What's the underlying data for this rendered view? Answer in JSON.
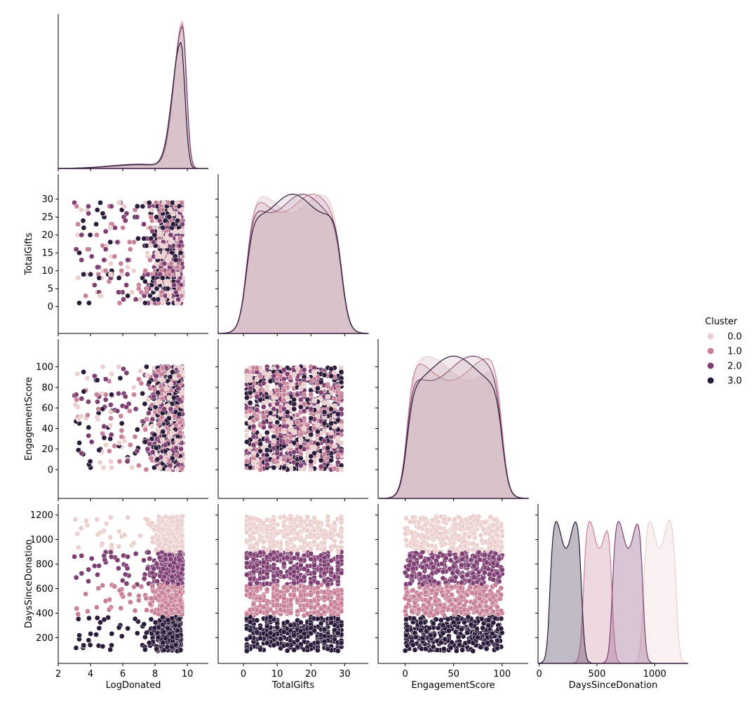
{
  "chart_data": {
    "type": "scatter",
    "title": "",
    "layout": "pairplot-lower-corner",
    "variables": [
      "LogDonated",
      "TotalGifts",
      "EngagementScore",
      "DaysSinceDonation"
    ],
    "axes": {
      "LogDonated": {
        "label": "LogDonated",
        "range": [
          2,
          11.3
        ],
        "ticks": [
          2,
          4,
          6,
          8,
          10
        ]
      },
      "TotalGifts": {
        "label": "TotalGifts",
        "range": [
          -7.5,
          37
        ],
        "ticks": [
          0,
          5,
          10,
          15,
          20,
          25,
          30
        ],
        "x_ticks": [
          0,
          10,
          20,
          30
        ]
      },
      "EngagementScore": {
        "label": "EngagementScore",
        "range": [
          -28,
          127
        ],
        "ticks": [
          0,
          20,
          40,
          60,
          80,
          100
        ],
        "x_ticks": [
          0,
          50,
          100
        ]
      },
      "DaysSinceDonation": {
        "label": "DaysSinceDonation",
        "range": [
          -10,
          1290
        ],
        "ticks": [
          200,
          400,
          600,
          800,
          1000,
          1200
        ],
        "x_ticks": [
          0,
          500,
          1000
        ]
      }
    },
    "legend": {
      "title": "Cluster",
      "position": "right",
      "entries": [
        {
          "label": "0.0",
          "color": "#ebd0ce"
        },
        {
          "label": "1.0",
          "color": "#c98198"
        },
        {
          "label": "2.0",
          "color": "#7f3f73"
        },
        {
          "label": "3.0",
          "color": "#2b1b3a"
        }
      ]
    },
    "clusters": [
      {
        "name": "0.0",
        "days_range": [
          900,
          1190
        ],
        "logdonated_peak": 9.7,
        "kde_days_peaks": [
          1000,
          1120
        ]
      },
      {
        "name": "1.0",
        "days_range": [
          380,
          630
        ],
        "logdonated_peak": 9.7,
        "kde_days_peaks": [
          450,
          560
        ]
      },
      {
        "name": "2.0",
        "days_range": [
          630,
          900
        ],
        "logdonated_peak": 9.7,
        "kde_days_peaks": [
          730,
          860
        ]
      },
      {
        "name": "3.0",
        "days_range": [
          90,
          370
        ],
        "logdonated_peak": 9.6,
        "kde_days_peaks": [
          150,
          280
        ]
      }
    ],
    "grid": false
  }
}
